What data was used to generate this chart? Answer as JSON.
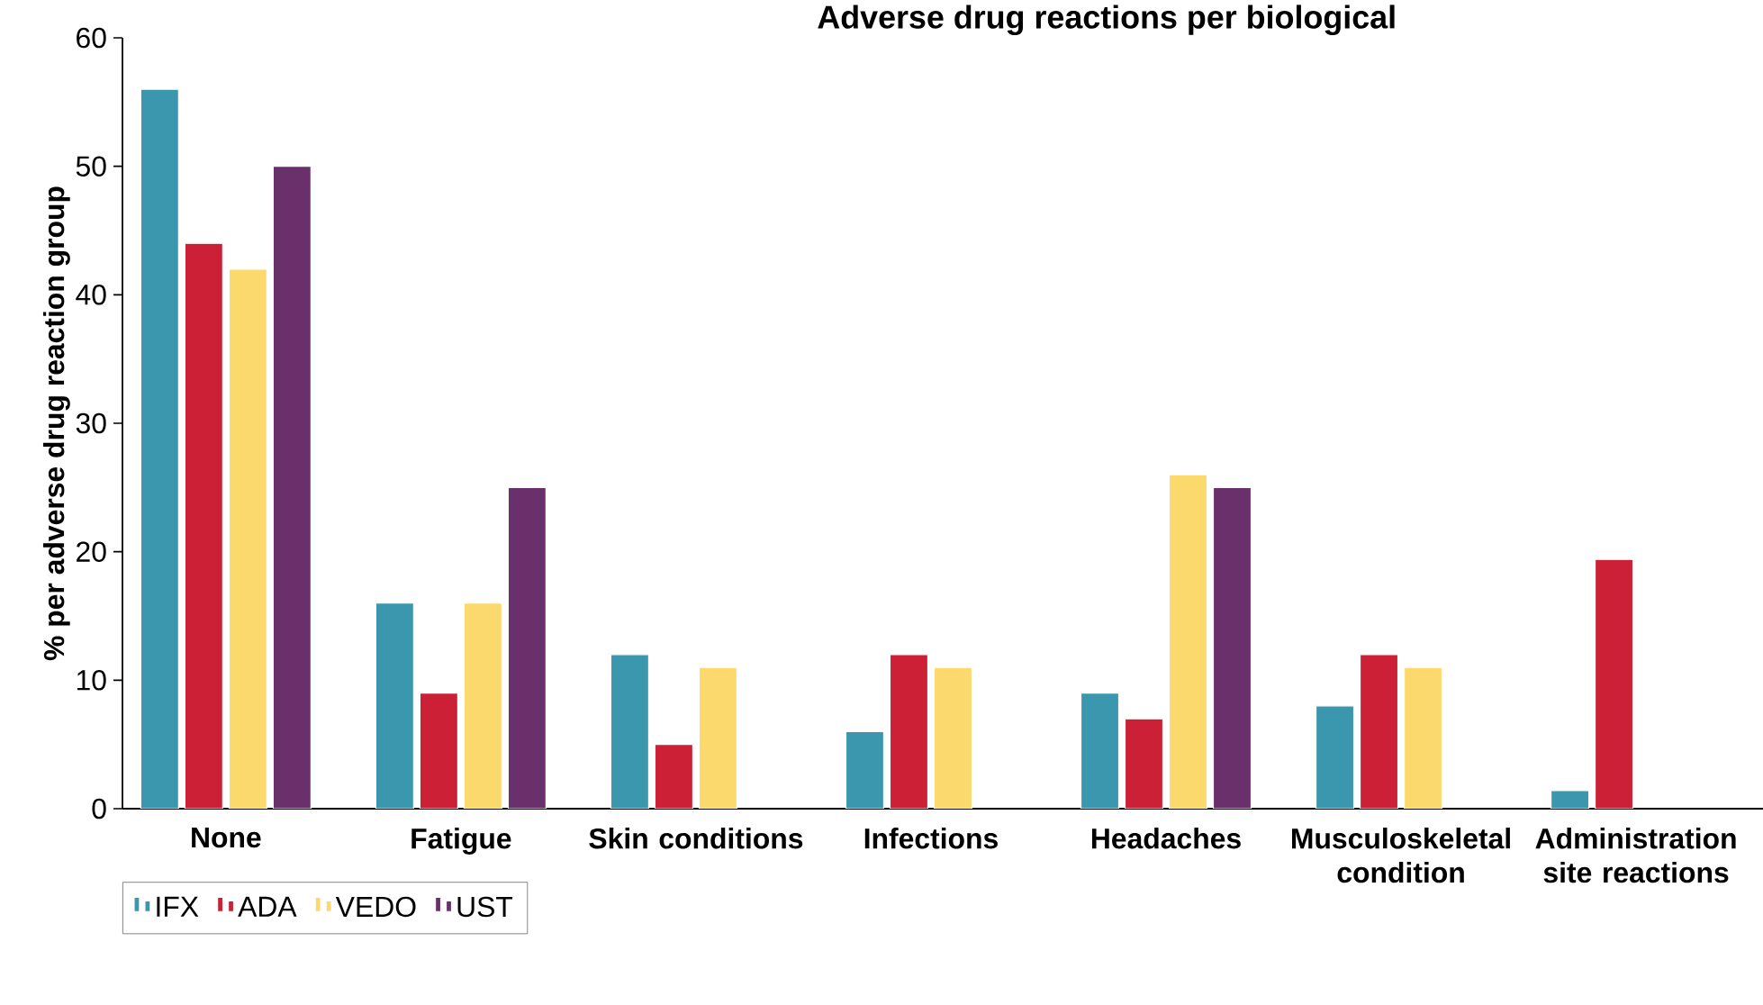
{
  "chart_data": {
    "type": "bar",
    "title": "Adverse drug reactions per biological",
    "ylabel": "% per adverse drug reaction group",
    "categories": [
      "None",
      "Fatigue",
      "Skin conditions",
      "Infections",
      "Headaches",
      "Musculoskeletal condition",
      "Administration site reactions"
    ],
    "series": [
      {
        "name": "IFX",
        "color": "#3a97ad",
        "values": [
          56,
          16,
          12,
          6,
          9,
          8,
          1.4
        ]
      },
      {
        "name": "ADA",
        "color": "#cb2035",
        "values": [
          44,
          9,
          5,
          12,
          7,
          12,
          19.4
        ]
      },
      {
        "name": "VEDO",
        "color": "#fcd96c",
        "values": [
          42,
          16,
          11,
          11,
          26,
          11,
          null
        ]
      },
      {
        "name": "UST",
        "color": "#69306c",
        "values": [
          50,
          25,
          null,
          null,
          25,
          null,
          null
        ]
      }
    ],
    "ylim": [
      0,
      60
    ],
    "yticks": [
      0,
      10,
      20,
      30,
      40,
      50,
      60
    ],
    "grid": false,
    "legend": "bottom left"
  }
}
